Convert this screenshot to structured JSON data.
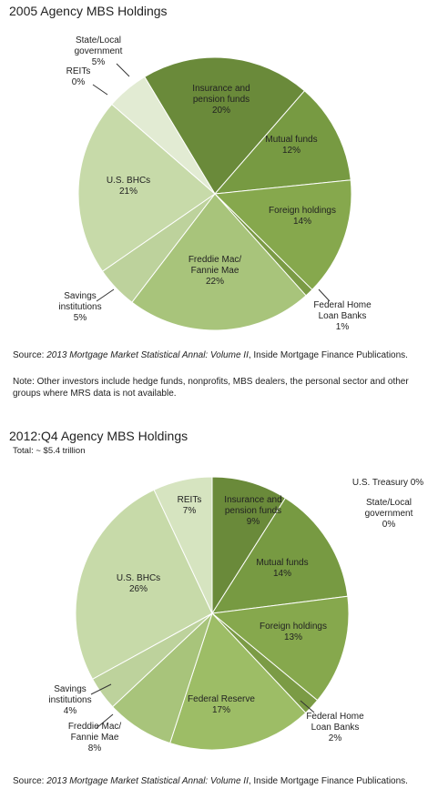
{
  "chart_data": [
    {
      "type": "pie",
      "title": "2005 Agency MBS Holdings",
      "categories": [
        "Insurance and pension funds",
        "Mutual funds",
        "Foreign holdings",
        "Federal Home Loan Banks",
        "Freddie Mac/ Fannie Mae",
        "Savings institutions",
        "U.S. BHCs",
        "REITs",
        "State/Local government"
      ],
      "values": [
        20,
        12,
        14,
        1,
        22,
        5,
        21,
        0,
        5
      ],
      "value_labels": [
        "20%",
        "12%",
        "14%",
        "1%",
        "22%",
        "5%",
        "21%",
        "0%",
        "5%"
      ],
      "colors": [
        "#6a8a3a",
        "#779a42",
        "#86a84d",
        "#7b9b45",
        "#a8c47b",
        "#bdd29c",
        "#c7daa9",
        "#d6e4c0",
        "#e2ebd3"
      ],
      "source": [
        "Source: ",
        "2013 Mortgage Market Statistical Annal: Volume II",
        ", Inside Mortgage Finance Publications."
      ],
      "note": "Note: Other investors include hedge funds, nonprofits, MBS dealers, the personal sector and other groups where MRS data is not available."
    },
    {
      "type": "pie",
      "title": "2012:Q4 Agency MBS Holdings",
      "subtitle": "Total:  ~ $5.4 trillion",
      "categories": [
        "Insurance and pension funds",
        "Mutual funds",
        "Foreign holdings",
        "Federal Home Loan Banks",
        "Federal Reserve",
        "Freddie Mac/ Fannie Mae",
        "Savings institutions",
        "U.S. BHCs",
        "REITs",
        "State/Local government",
        "U.S. Treasury"
      ],
      "values": [
        9,
        14,
        13,
        2,
        17,
        8,
        4,
        26,
        7,
        0,
        0
      ],
      "value_labels": [
        "9%",
        "14%",
        "13%",
        "2%",
        "17%",
        "8%",
        "4%",
        "26%",
        "7%",
        "0%",
        "0%"
      ],
      "colors": [
        "#6a8a3a",
        "#779a42",
        "#86a84d",
        "#7b9b45",
        "#9dbd66",
        "#a8c47b",
        "#bdd29c",
        "#c7daa9",
        "#d6e4c0",
        "#e2ebd3",
        "#eef3e6"
      ],
      "source": [
        "Source: ",
        "2013 Mortgage Market Statistical Annal: Volume II",
        ", Inside Mortgage Finance Publications."
      ]
    }
  ]
}
